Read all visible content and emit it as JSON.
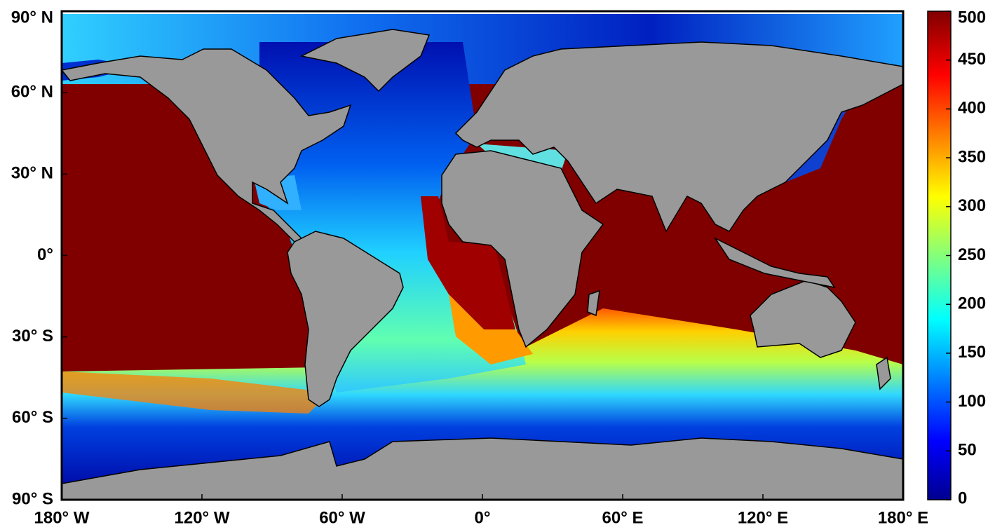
{
  "map": {
    "xlim": [
      -180,
      180
    ],
    "ylim": [
      -90,
      90
    ],
    "xticks": [
      {
        "value": -180,
        "label": "180° W"
      },
      {
        "value": -120,
        "label": "120° W"
      },
      {
        "value": -60,
        "label": "60° W"
      },
      {
        "value": 0,
        "label": "0°"
      },
      {
        "value": 60,
        "label": "60° E"
      },
      {
        "value": 120,
        "label": "120° E"
      },
      {
        "value": 180,
        "label": "180° E"
      }
    ],
    "yticks": [
      {
        "value": 90,
        "label": "90° N"
      },
      {
        "value": 60,
        "label": "60° N"
      },
      {
        "value": 30,
        "label": "30° N"
      },
      {
        "value": 0,
        "label": "0°"
      },
      {
        "value": -30,
        "label": "30° S"
      },
      {
        "value": -60,
        "label": "60° S"
      },
      {
        "value": -90,
        "label": "90° S"
      }
    ],
    "colorbar": {
      "lim": [
        0,
        500
      ],
      "ticks": [
        0,
        50,
        100,
        150,
        200,
        250,
        300,
        350,
        400,
        450,
        500
      ],
      "colormap": "jet"
    }
  }
}
